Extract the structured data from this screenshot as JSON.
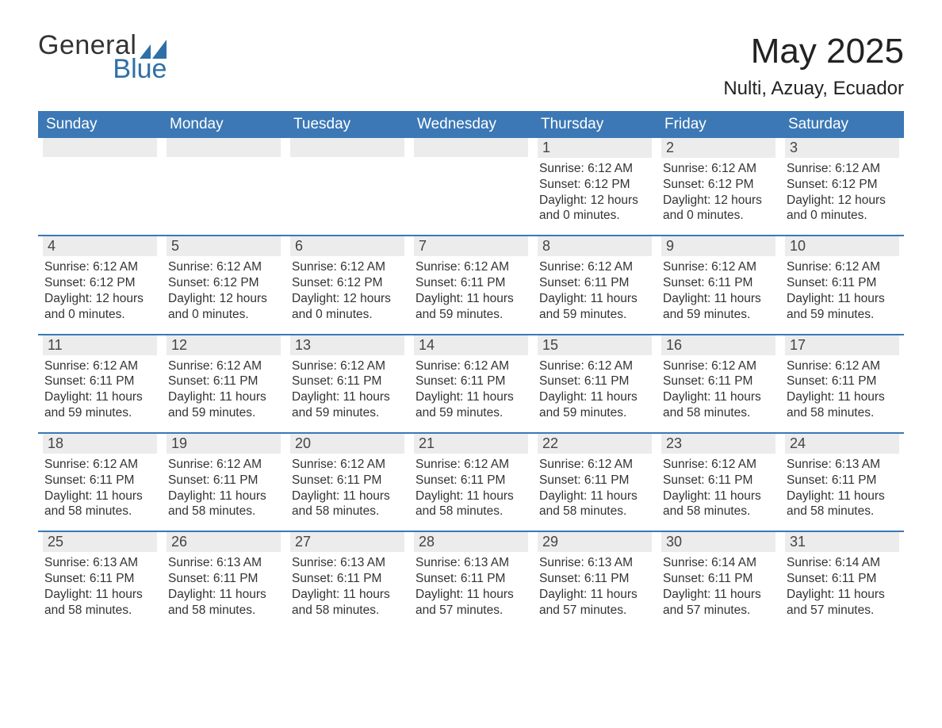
{
  "brand": {
    "word1": "General",
    "word2": "Blue",
    "mark_color": "#2f6fa7",
    "text_color": "#333333"
  },
  "header": {
    "month_title": "May 2025",
    "location": "Nulti, Azuay, Ecuador"
  },
  "colors": {
    "header_bg": "#3b78b5",
    "header_fg": "#ffffff",
    "week_border": "#3b78b5",
    "daynum_bg": "#ececec",
    "body_text": "#333333"
  },
  "days_of_week": [
    "Sunday",
    "Monday",
    "Tuesday",
    "Wednesday",
    "Thursday",
    "Friday",
    "Saturday"
  ],
  "weeks": [
    [
      {
        "empty": true
      },
      {
        "empty": true
      },
      {
        "empty": true
      },
      {
        "empty": true
      },
      {
        "n": "1",
        "sunrise": "6:12 AM",
        "sunset": "6:12 PM",
        "daylight": "12 hours and 0 minutes."
      },
      {
        "n": "2",
        "sunrise": "6:12 AM",
        "sunset": "6:12 PM",
        "daylight": "12 hours and 0 minutes."
      },
      {
        "n": "3",
        "sunrise": "6:12 AM",
        "sunset": "6:12 PM",
        "daylight": "12 hours and 0 minutes."
      }
    ],
    [
      {
        "n": "4",
        "sunrise": "6:12 AM",
        "sunset": "6:12 PM",
        "daylight": "12 hours and 0 minutes."
      },
      {
        "n": "5",
        "sunrise": "6:12 AM",
        "sunset": "6:12 PM",
        "daylight": "12 hours and 0 minutes."
      },
      {
        "n": "6",
        "sunrise": "6:12 AM",
        "sunset": "6:12 PM",
        "daylight": "12 hours and 0 minutes."
      },
      {
        "n": "7",
        "sunrise": "6:12 AM",
        "sunset": "6:11 PM",
        "daylight": "11 hours and 59 minutes."
      },
      {
        "n": "8",
        "sunrise": "6:12 AM",
        "sunset": "6:11 PM",
        "daylight": "11 hours and 59 minutes."
      },
      {
        "n": "9",
        "sunrise": "6:12 AM",
        "sunset": "6:11 PM",
        "daylight": "11 hours and 59 minutes."
      },
      {
        "n": "10",
        "sunrise": "6:12 AM",
        "sunset": "6:11 PM",
        "daylight": "11 hours and 59 minutes."
      }
    ],
    [
      {
        "n": "11",
        "sunrise": "6:12 AM",
        "sunset": "6:11 PM",
        "daylight": "11 hours and 59 minutes."
      },
      {
        "n": "12",
        "sunrise": "6:12 AM",
        "sunset": "6:11 PM",
        "daylight": "11 hours and 59 minutes."
      },
      {
        "n": "13",
        "sunrise": "6:12 AM",
        "sunset": "6:11 PM",
        "daylight": "11 hours and 59 minutes."
      },
      {
        "n": "14",
        "sunrise": "6:12 AM",
        "sunset": "6:11 PM",
        "daylight": "11 hours and 59 minutes."
      },
      {
        "n": "15",
        "sunrise": "6:12 AM",
        "sunset": "6:11 PM",
        "daylight": "11 hours and 59 minutes."
      },
      {
        "n": "16",
        "sunrise": "6:12 AM",
        "sunset": "6:11 PM",
        "daylight": "11 hours and 58 minutes."
      },
      {
        "n": "17",
        "sunrise": "6:12 AM",
        "sunset": "6:11 PM",
        "daylight": "11 hours and 58 minutes."
      }
    ],
    [
      {
        "n": "18",
        "sunrise": "6:12 AM",
        "sunset": "6:11 PM",
        "daylight": "11 hours and 58 minutes."
      },
      {
        "n": "19",
        "sunrise": "6:12 AM",
        "sunset": "6:11 PM",
        "daylight": "11 hours and 58 minutes."
      },
      {
        "n": "20",
        "sunrise": "6:12 AM",
        "sunset": "6:11 PM",
        "daylight": "11 hours and 58 minutes."
      },
      {
        "n": "21",
        "sunrise": "6:12 AM",
        "sunset": "6:11 PM",
        "daylight": "11 hours and 58 minutes."
      },
      {
        "n": "22",
        "sunrise": "6:12 AM",
        "sunset": "6:11 PM",
        "daylight": "11 hours and 58 minutes."
      },
      {
        "n": "23",
        "sunrise": "6:12 AM",
        "sunset": "6:11 PM",
        "daylight": "11 hours and 58 minutes."
      },
      {
        "n": "24",
        "sunrise": "6:13 AM",
        "sunset": "6:11 PM",
        "daylight": "11 hours and 58 minutes."
      }
    ],
    [
      {
        "n": "25",
        "sunrise": "6:13 AM",
        "sunset": "6:11 PM",
        "daylight": "11 hours and 58 minutes."
      },
      {
        "n": "26",
        "sunrise": "6:13 AM",
        "sunset": "6:11 PM",
        "daylight": "11 hours and 58 minutes."
      },
      {
        "n": "27",
        "sunrise": "6:13 AM",
        "sunset": "6:11 PM",
        "daylight": "11 hours and 58 minutes."
      },
      {
        "n": "28",
        "sunrise": "6:13 AM",
        "sunset": "6:11 PM",
        "daylight": "11 hours and 57 minutes."
      },
      {
        "n": "29",
        "sunrise": "6:13 AM",
        "sunset": "6:11 PM",
        "daylight": "11 hours and 57 minutes."
      },
      {
        "n": "30",
        "sunrise": "6:14 AM",
        "sunset": "6:11 PM",
        "daylight": "11 hours and 57 minutes."
      },
      {
        "n": "31",
        "sunrise": "6:14 AM",
        "sunset": "6:11 PM",
        "daylight": "11 hours and 57 minutes."
      }
    ]
  ],
  "labels": {
    "sunrise": "Sunrise:",
    "sunset": "Sunset:",
    "daylight": "Daylight:"
  }
}
